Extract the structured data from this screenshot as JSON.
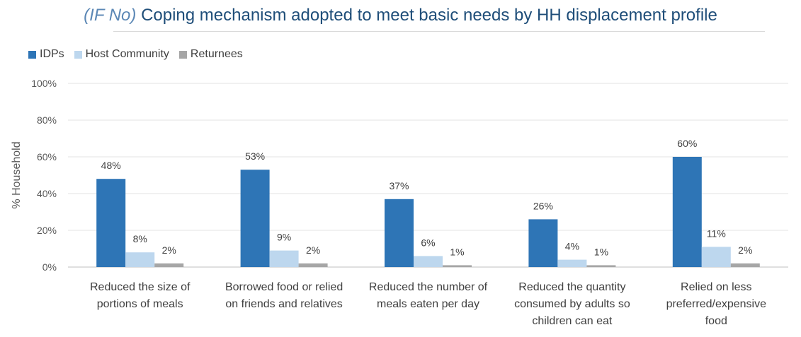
{
  "chart_data": {
    "type": "bar",
    "title_prefix": "(IF No)",
    "title": "Coping mechanism adopted to meet basic needs by HH displacement profile",
    "ylabel": "% Household",
    "xlabel": "",
    "ylim": [
      0,
      100
    ],
    "yticks": [
      "0%",
      "20%",
      "40%",
      "60%",
      "80%",
      "100%"
    ],
    "grid": true,
    "legend_position": "top-left",
    "categories": [
      [
        "Reduced the size of",
        "portions of meals"
      ],
      [
        "Borrowed food or relied",
        "on friends and relatives"
      ],
      [
        "Reduced the number of",
        "meals eaten per day"
      ],
      [
        "Reduced the quantity",
        "consumed by adults so",
        "children can eat"
      ],
      [
        "Relied on less",
        "preferred/expensive",
        "food"
      ]
    ],
    "series": [
      {
        "name": "IDPs",
        "color": "#2e75b6",
        "values": [
          48,
          53,
          37,
          26,
          60
        ],
        "labels": [
          "48%",
          "53%",
          "37%",
          "26%",
          "60%"
        ]
      },
      {
        "name": "Host Community",
        "color": "#bdd7ee",
        "values": [
          8,
          9,
          6,
          4,
          11
        ],
        "labels": [
          "8%",
          "9%",
          "6%",
          "4%",
          "11%"
        ]
      },
      {
        "name": "Returnees",
        "color": "#a6a6a6",
        "values": [
          2,
          2,
          1,
          1,
          2
        ],
        "labels": [
          "2%",
          "2%",
          "1%",
          "1%",
          "2%"
        ]
      }
    ]
  }
}
